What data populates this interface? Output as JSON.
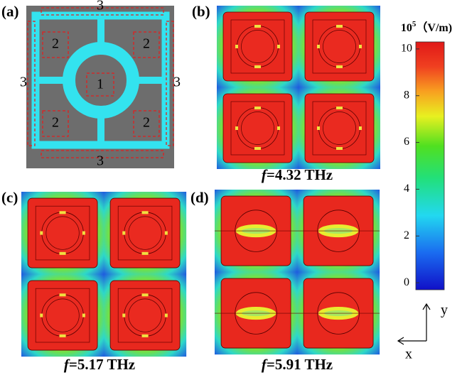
{
  "panels": [
    {
      "label": "(a)"
    },
    {
      "label": "(b)"
    },
    {
      "label": "(c)"
    },
    {
      "label": "(d)"
    }
  ],
  "regions": {
    "center": "1",
    "side": "2",
    "outer": "3"
  },
  "captions": [
    {
      "symbol": "f",
      "text": "=4.32 THz"
    },
    {
      "symbol": "f",
      "text": "=5.17 THz"
    },
    {
      "symbol": "f",
      "text": "=5.91 THz"
    }
  ],
  "colorbar": {
    "unit_base": "10",
    "unit_exp": "5",
    "unit": "（V/m)",
    "lim": [
      -0.3,
      10.3
    ],
    "ticks": [
      0,
      2,
      4,
      6,
      8,
      10
    ]
  },
  "axes": {
    "x": "x",
    "y": "y"
  }
}
